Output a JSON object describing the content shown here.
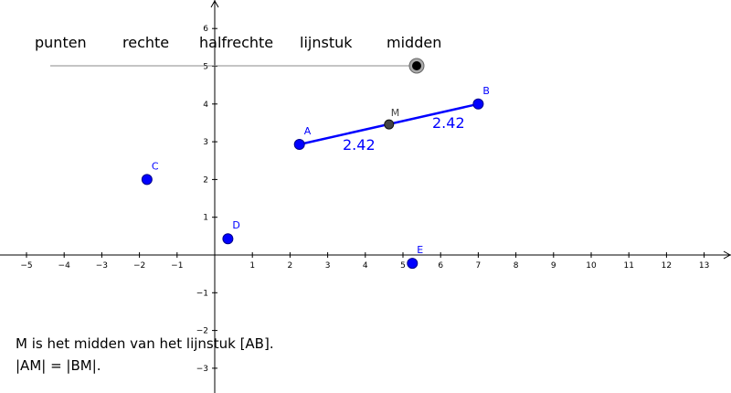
{
  "menu": {
    "items": [
      {
        "label": "punten"
      },
      {
        "label": "rechte"
      },
      {
        "label": "halfrechte"
      },
      {
        "label": "lijnstuk"
      },
      {
        "label": "midden"
      }
    ],
    "selected_index": 4
  },
  "axes": {
    "x_ticks": [
      -5,
      -4,
      -3,
      -2,
      -1,
      1,
      2,
      3,
      4,
      5,
      6,
      7,
      8,
      9,
      10,
      11,
      12,
      13
    ],
    "y_ticks": [
      -3,
      -2,
      -1,
      1,
      2,
      3,
      4,
      5,
      6
    ],
    "xlim": [
      -5.7,
      13.6
    ],
    "ylim": [
      -3.6,
      6.7
    ]
  },
  "points": [
    {
      "name": "A",
      "x": 2.25,
      "y": 2.93
    },
    {
      "name": "B",
      "x": 7.0,
      "y": 4.0
    },
    {
      "name": "C",
      "x": -1.8,
      "y": 2.0
    },
    {
      "name": "D",
      "x": 0.35,
      "y": 0.43
    },
    {
      "name": "E",
      "x": 5.25,
      "y": -0.22
    }
  ],
  "midpoint": {
    "name": "M",
    "x": 4.63,
    "y": 3.46
  },
  "segment": {
    "from": "A",
    "to": "B"
  },
  "distances": {
    "am": "2.42",
    "bm": "2.42"
  },
  "caption": {
    "line1": "M is het midden van het lijnstuk [AB].",
    "line2": "|AM| = |BM|."
  },
  "colors": {
    "point": "#0000ff",
    "midpoint": "#444444",
    "segment": "#0000ff"
  }
}
